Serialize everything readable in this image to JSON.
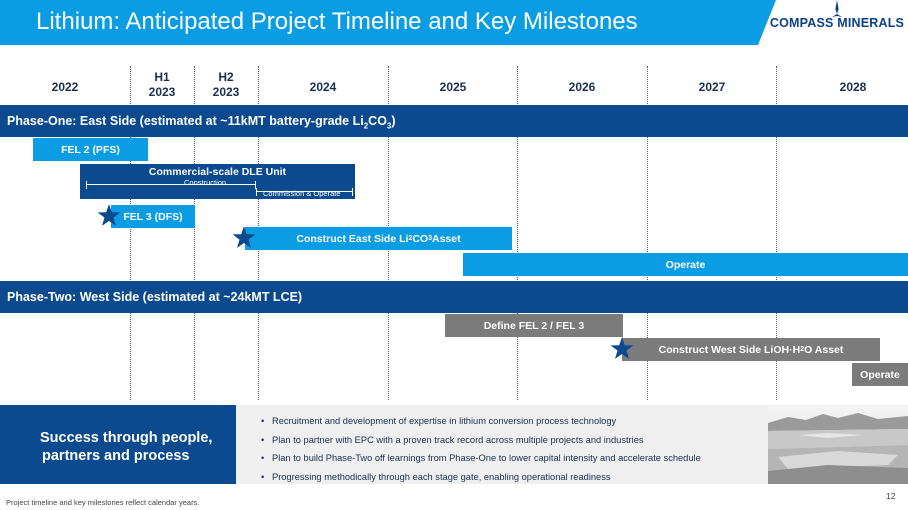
{
  "header": {
    "title": "Lithium: Anticipated Project Timeline and Key Milestones",
    "logo_text": "COMPASS MINERALS",
    "brand_color": "#0a9de3",
    "navy_color": "#0c4a8f"
  },
  "timeline": {
    "years": [
      {
        "line1": "2022",
        "line2": ""
      },
      {
        "line1": "H1",
        "line2": "2023"
      },
      {
        "line1": "H2",
        "line2": "2023"
      },
      {
        "line1": "2024",
        "line2": ""
      },
      {
        "line1": "2025",
        "line2": ""
      },
      {
        "line1": "2026",
        "line2": ""
      },
      {
        "line1": "2027",
        "line2": ""
      },
      {
        "line1": "2028",
        "line2": ""
      }
    ]
  },
  "phase_one": {
    "title_prefix": "Phase-One: East Side (estimated at ~11kMT battery-grade Li",
    "title_sub1": "2",
    "title_mid": "CO",
    "title_sub2": "3",
    "title_suffix": ")",
    "fel2": "FEL 2 (PFS)",
    "dle_title": "Commercial-scale DLE Unit",
    "dle_construction": "Construction",
    "dle_commission": "Commission & Operate",
    "fel3": "FEL 3 (DFS)",
    "construct_prefix": "Construct East Side Li",
    "construct_sub1": "2",
    "construct_mid": "CO",
    "construct_sub2": "3",
    "construct_suffix": " Asset",
    "operate": "Operate"
  },
  "phase_two": {
    "title": "Phase-Two: West Side (estimated at ~24kMT LCE)",
    "define": "Define FEL 2 / FEL 3",
    "construct_prefix": "Construct West Side LiOH·H",
    "construct_sub": "2",
    "construct_suffix": "O Asset",
    "operate": "Operate"
  },
  "bottom": {
    "headline_line1": "Success through people,",
    "headline_line2": "partners and process",
    "bullets": [
      "Recruitment and development of expertise in lithium conversion process technology",
      "Plan to partner with EPC with a proven track record across multiple projects and industries",
      "Plan to build Phase-Two off learnings from Phase-One to lower capital intensity and accelerate schedule",
      "Progressing methodically through each stage gate, enabling operational readiness"
    ]
  },
  "footer": {
    "footnote": "Project timeline and key milestones reflect calendar years.",
    "page_number": "12"
  },
  "icons": [
    "compass-star-icon",
    "milestone-star-icon"
  ]
}
